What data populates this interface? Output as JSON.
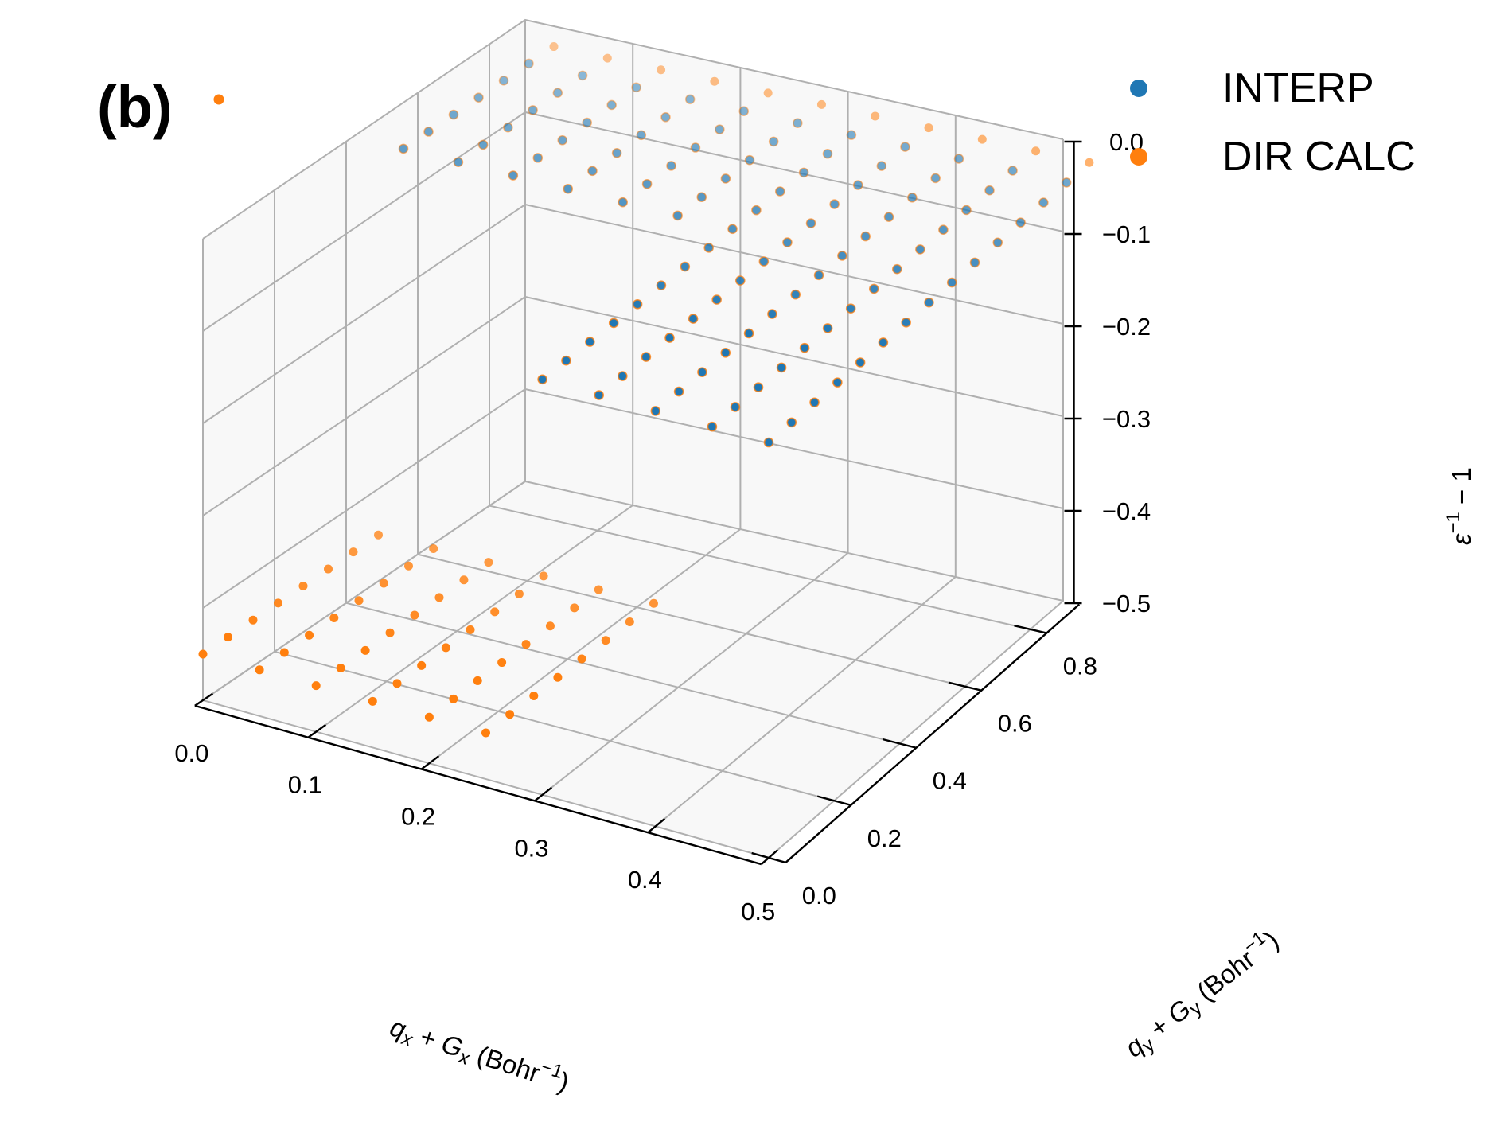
{
  "chart_data": {
    "type": "scatter",
    "projection": "3d",
    "panel_label": "(b)",
    "xlabel": "q_x + G_x (Bohr^-1)",
    "ylabel": "q_y + G_y (Bohr^-1)",
    "zlabel": "ε^-1 − 1",
    "xlim": [
      0.0,
      0.5
    ],
    "ylim": [
      0.0,
      0.9
    ],
    "zlim": [
      -0.5,
      0.0
    ],
    "xticks": [
      "0.0",
      "0.1",
      "0.2",
      "0.3",
      "0.4",
      "0.5"
    ],
    "yticks": [
      "0.0",
      "0.2",
      "0.4",
      "0.6",
      "0.8"
    ],
    "zticks": [
      "0.0",
      "−0.1",
      "−0.2",
      "−0.3",
      "−0.4",
      "−0.5"
    ],
    "grid": true,
    "legend_position": "top-right",
    "x_grid_values": [
      0.0,
      0.05,
      0.1,
      0.15,
      0.2,
      0.25,
      0.3,
      0.35,
      0.4,
      0.45,
      0.5
    ],
    "y_grid_values": [
      0.0,
      0.07,
      0.14,
      0.21,
      0.28,
      0.35,
      0.42,
      0.49,
      0.56,
      0.63,
      0.7,
      0.77,
      0.84,
      0.91,
      0.98
    ],
    "z_rule": "z = -0.45 where x <= 0.25 and y <= 0.49, otherwise z = -0.05; singular point z = 0 at x = 0, y = 0",
    "series": [
      {
        "name": "INTERP",
        "color": "#1f77b4",
        "region": "plateau at z = -0.05 (interpolated points, x from 0.0 to 0.5, y from 0.0 to 0.91)",
        "z": -0.05
      },
      {
        "name": "DIR CALC",
        "color": "#ff7f0e",
        "region": "full grid: lower step z = -0.45, upper plateau z = -0.05, singular point z = 0.0 at origin",
        "z_values": [
          -0.45,
          -0.05,
          0.0
        ]
      }
    ]
  },
  "legend": [
    {
      "label": "INTERP",
      "color": "#1f77b4"
    },
    {
      "label": "DIR CALC",
      "color": "#ff7f0e"
    }
  ]
}
